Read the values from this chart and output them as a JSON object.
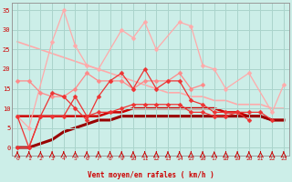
{
  "background_color": "#cceee8",
  "grid_color": "#aad4cc",
  "xlabel": "Vent moyen/en rafales ( km/h )",
  "xlabel_color": "#cc0000",
  "yticks": [
    0,
    5,
    10,
    15,
    20,
    25,
    30,
    35
  ],
  "xticks": [
    0,
    1,
    2,
    3,
    4,
    5,
    6,
    7,
    8,
    9,
    10,
    11,
    12,
    13,
    14,
    15,
    16,
    17,
    18,
    19,
    20,
    21,
    22,
    23
  ],
  "ylim": [
    -2,
    37
  ],
  "xlim": [
    -0.5,
    23.5
  ],
  "lines": [
    {
      "y": [
        8,
        5,
        27,
        35,
        26,
        21,
        20,
        30,
        28,
        32,
        25,
        32,
        31,
        21,
        20,
        15,
        19,
        9,
        16,
        null,
        null,
        null,
        null,
        null
      ],
      "x": [
        0,
        1,
        3,
        4,
        5,
        6,
        7,
        9,
        10,
        11,
        12,
        14,
        15,
        16,
        17,
        18,
        20,
        22,
        23,
        null,
        null,
        null,
        null,
        null
      ],
      "color": "#ffaaaa",
      "marker": "D",
      "markersize": 2.5,
      "linewidth": 0.9,
      "zorder": 2
    },
    {
      "y": [
        27,
        26,
        25,
        24,
        23,
        22,
        21,
        20,
        19,
        18,
        17,
        16,
        15,
        14,
        14,
        13,
        13,
        12,
        12,
        11,
        11,
        11,
        10,
        10
      ],
      "x": [
        0,
        1,
        2,
        3,
        4,
        5,
        6,
        7,
        8,
        9,
        10,
        11,
        12,
        13,
        14,
        15,
        16,
        17,
        18,
        19,
        20,
        21,
        22,
        23
      ],
      "color": "#ffaaaa",
      "marker": null,
      "markersize": 0,
      "linewidth": 1.2,
      "zorder": 1
    },
    {
      "y": [
        17,
        17,
        14,
        13,
        13,
        15,
        19,
        17,
        17,
        17,
        15,
        17,
        17,
        17,
        19,
        15,
        16,
        null,
        null,
        null,
        null,
        null,
        null,
        null
      ],
      "x": [
        0,
        1,
        2,
        3,
        4,
        5,
        6,
        7,
        8,
        9,
        10,
        11,
        12,
        13,
        14,
        15,
        16,
        null,
        null,
        null,
        null,
        null,
        null,
        null
      ],
      "color": "#ff8888",
      "marker": "D",
      "markersize": 2.5,
      "linewidth": 0.9,
      "zorder": 2
    },
    {
      "y": [
        8,
        0,
        8,
        14,
        13,
        10,
        7,
        13,
        17,
        19,
        15,
        20,
        15,
        17,
        17,
        12,
        11,
        9,
        9,
        9,
        9,
        9,
        7,
        null
      ],
      "x": [
        0,
        1,
        2,
        3,
        4,
        5,
        6,
        7,
        8,
        9,
        10,
        11,
        12,
        13,
        14,
        15,
        16,
        17,
        18,
        19,
        20,
        21,
        22,
        null
      ],
      "color": "#ee3333",
      "marker": "D",
      "markersize": 2.5,
      "linewidth": 0.9,
      "zorder": 3
    },
    {
      "y": [
        8,
        8,
        8,
        8,
        8,
        8,
        8,
        8,
        9,
        9,
        10,
        10,
        10,
        10,
        10,
        10,
        10,
        10,
        9,
        9,
        8,
        8,
        7,
        7
      ],
      "x": [
        0,
        1,
        2,
        3,
        4,
        5,
        6,
        7,
        8,
        9,
        10,
        11,
        12,
        13,
        14,
        15,
        16,
        17,
        18,
        19,
        20,
        21,
        22,
        23
      ],
      "color": "#cc0000",
      "marker": null,
      "markersize": 0,
      "linewidth": 1.8,
      "zorder": 1
    },
    {
      "y": [
        0,
        0,
        8,
        8,
        8,
        13,
        8,
        9,
        9,
        10,
        11,
        11,
        11,
        11,
        11,
        9,
        9,
        8,
        8,
        9,
        7,
        null,
        null,
        null
      ],
      "x": [
        0,
        1,
        2,
        3,
        4,
        5,
        6,
        7,
        8,
        9,
        10,
        11,
        12,
        13,
        14,
        15,
        16,
        17,
        18,
        19,
        20,
        null,
        null,
        null
      ],
      "color": "#ee3333",
      "marker": "D",
      "markersize": 2.5,
      "linewidth": 0.9,
      "zorder": 3
    },
    {
      "y": [
        0,
        0,
        1,
        2,
        4,
        5,
        6,
        7,
        7,
        8,
        8,
        8,
        8,
        8,
        8,
        8,
        8,
        8,
        8,
        8,
        8,
        8,
        7,
        7
      ],
      "x": [
        0,
        1,
        2,
        3,
        4,
        5,
        6,
        7,
        8,
        9,
        10,
        11,
        12,
        13,
        14,
        15,
        16,
        17,
        18,
        19,
        20,
        21,
        22,
        23
      ],
      "color": "#990000",
      "marker": null,
      "markersize": 0,
      "linewidth": 2.2,
      "zorder": 1
    }
  ]
}
